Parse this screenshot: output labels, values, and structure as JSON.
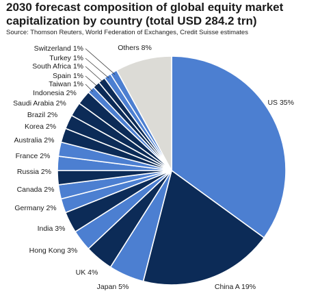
{
  "title_line1": "2030 forecast composition of global equity market",
  "title_line2": "capitalization by country (total USD 284.2 trn)",
  "source": "Source: Thomson Reuters, World Federation of Exchanges, Credit Suisse estimates",
  "colors": {
    "dark": "#0c2b57",
    "light": "#4c7fd1",
    "other": "#dcdbd6",
    "stroke": "#ffffff"
  },
  "chart_data": {
    "type": "pie",
    "title": "2030 forecast composition of global equity market capitalization by country (total USD 284.2 trn)",
    "slices": [
      {
        "label": "US 35%",
        "value": 35,
        "tone": "light"
      },
      {
        "label": "China A 19%",
        "value": 19,
        "tone": "dark"
      },
      {
        "label": "Japan 5%",
        "value": 5,
        "tone": "light"
      },
      {
        "label": "UK 4%",
        "value": 4,
        "tone": "dark"
      },
      {
        "label": "Hong Kong 3%",
        "value": 3,
        "tone": "light"
      },
      {
        "label": "India 3%",
        "value": 3,
        "tone": "dark"
      },
      {
        "label": "Germany 2%",
        "value": 2,
        "tone": "light"
      },
      {
        "label": "Canada 2%",
        "value": 2,
        "tone": "light"
      },
      {
        "label": "Russia 2%",
        "value": 2,
        "tone": "dark"
      },
      {
        "label": "France 2%",
        "value": 2,
        "tone": "light"
      },
      {
        "label": "Australia 2%",
        "value": 2,
        "tone": "light"
      },
      {
        "label": "Korea 2%",
        "value": 2,
        "tone": "dark"
      },
      {
        "label": "Brazil 2%",
        "value": 2,
        "tone": "dark"
      },
      {
        "label": "Saudi Arabia 2%",
        "value": 2,
        "tone": "dark"
      },
      {
        "label": "Indonesia 2%",
        "value": 2,
        "tone": "dark"
      },
      {
        "label": "Taiwan 1%",
        "value": 1,
        "tone": "light"
      },
      {
        "label": "Spain 1%",
        "value": 1,
        "tone": "dark"
      },
      {
        "label": "South Africa 1%",
        "value": 1,
        "tone": "dark"
      },
      {
        "label": "Turkey 1%",
        "value": 1,
        "tone": "light"
      },
      {
        "label": "Switzerland 1%",
        "value": 1,
        "tone": "light"
      },
      {
        "label": "Others 8%",
        "value": 8,
        "tone": "other"
      }
    ]
  }
}
